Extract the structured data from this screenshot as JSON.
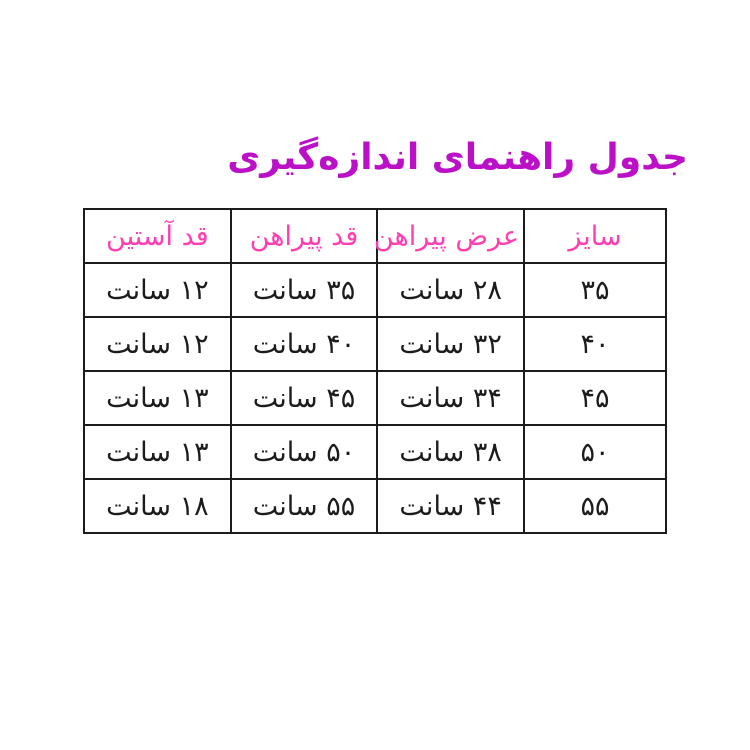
{
  "page": {
    "background": "#ffffff",
    "title": "جدول راهنمای اندازه‌گیری",
    "title_color": "#bb10c8"
  },
  "table": {
    "direction": "rtl",
    "border_color": "#1c1c1c",
    "header_text_color": "#ff3eb1",
    "body_text_color": "#1c1c1c",
    "headers": [
      "سایز",
      "عرض پیراهن",
      "قد پیراهن",
      "قد آستین"
    ],
    "rows": [
      [
        "۳۵",
        "۲۸ سانت",
        "۳۵ سانت",
        "۱۲ سانت"
      ],
      [
        "۴۰",
        "۳۲ سانت",
        "۴۰ سانت",
        "۱۲ سانت"
      ],
      [
        "۴۵",
        "۳۴ سانت",
        "۴۵ سانت",
        "۱۳ سانت"
      ],
      [
        "۵۰",
        "۳۸ سانت",
        "۵۰ سانت",
        "۱۳ سانت"
      ],
      [
        "۵۵",
        "۴۴ سانت",
        "۵۵ سانت",
        "۱۸ سانت"
      ]
    ]
  },
  "chart_data": {
    "type": "table",
    "title": "جدول راهنمای اندازه‌گیری",
    "columns": [
      "سایز",
      "عرض پیراهن",
      "قد پیراهن",
      "قد آستین"
    ],
    "columns_en": [
      "size",
      "shirt_width",
      "shirt_length",
      "sleeve_length"
    ],
    "unit_label": "سانت",
    "rows_numeric": [
      {
        "size": 35,
        "shirt_width_cm": 28,
        "shirt_length_cm": 35,
        "sleeve_length_cm": 12
      },
      {
        "size": 40,
        "shirt_width_cm": 32,
        "shirt_length_cm": 40,
        "sleeve_length_cm": 12
      },
      {
        "size": 45,
        "shirt_width_cm": 34,
        "shirt_length_cm": 45,
        "sleeve_length_cm": 13
      },
      {
        "size": 50,
        "shirt_width_cm": 38,
        "shirt_length_cm": 50,
        "sleeve_length_cm": 13
      },
      {
        "size": 55,
        "shirt_width_cm": 44,
        "shirt_length_cm": 55,
        "sleeve_length_cm": 18
      }
    ],
    "layout": "rtl table, pink headers, black body text, black 2px grid borders"
  }
}
